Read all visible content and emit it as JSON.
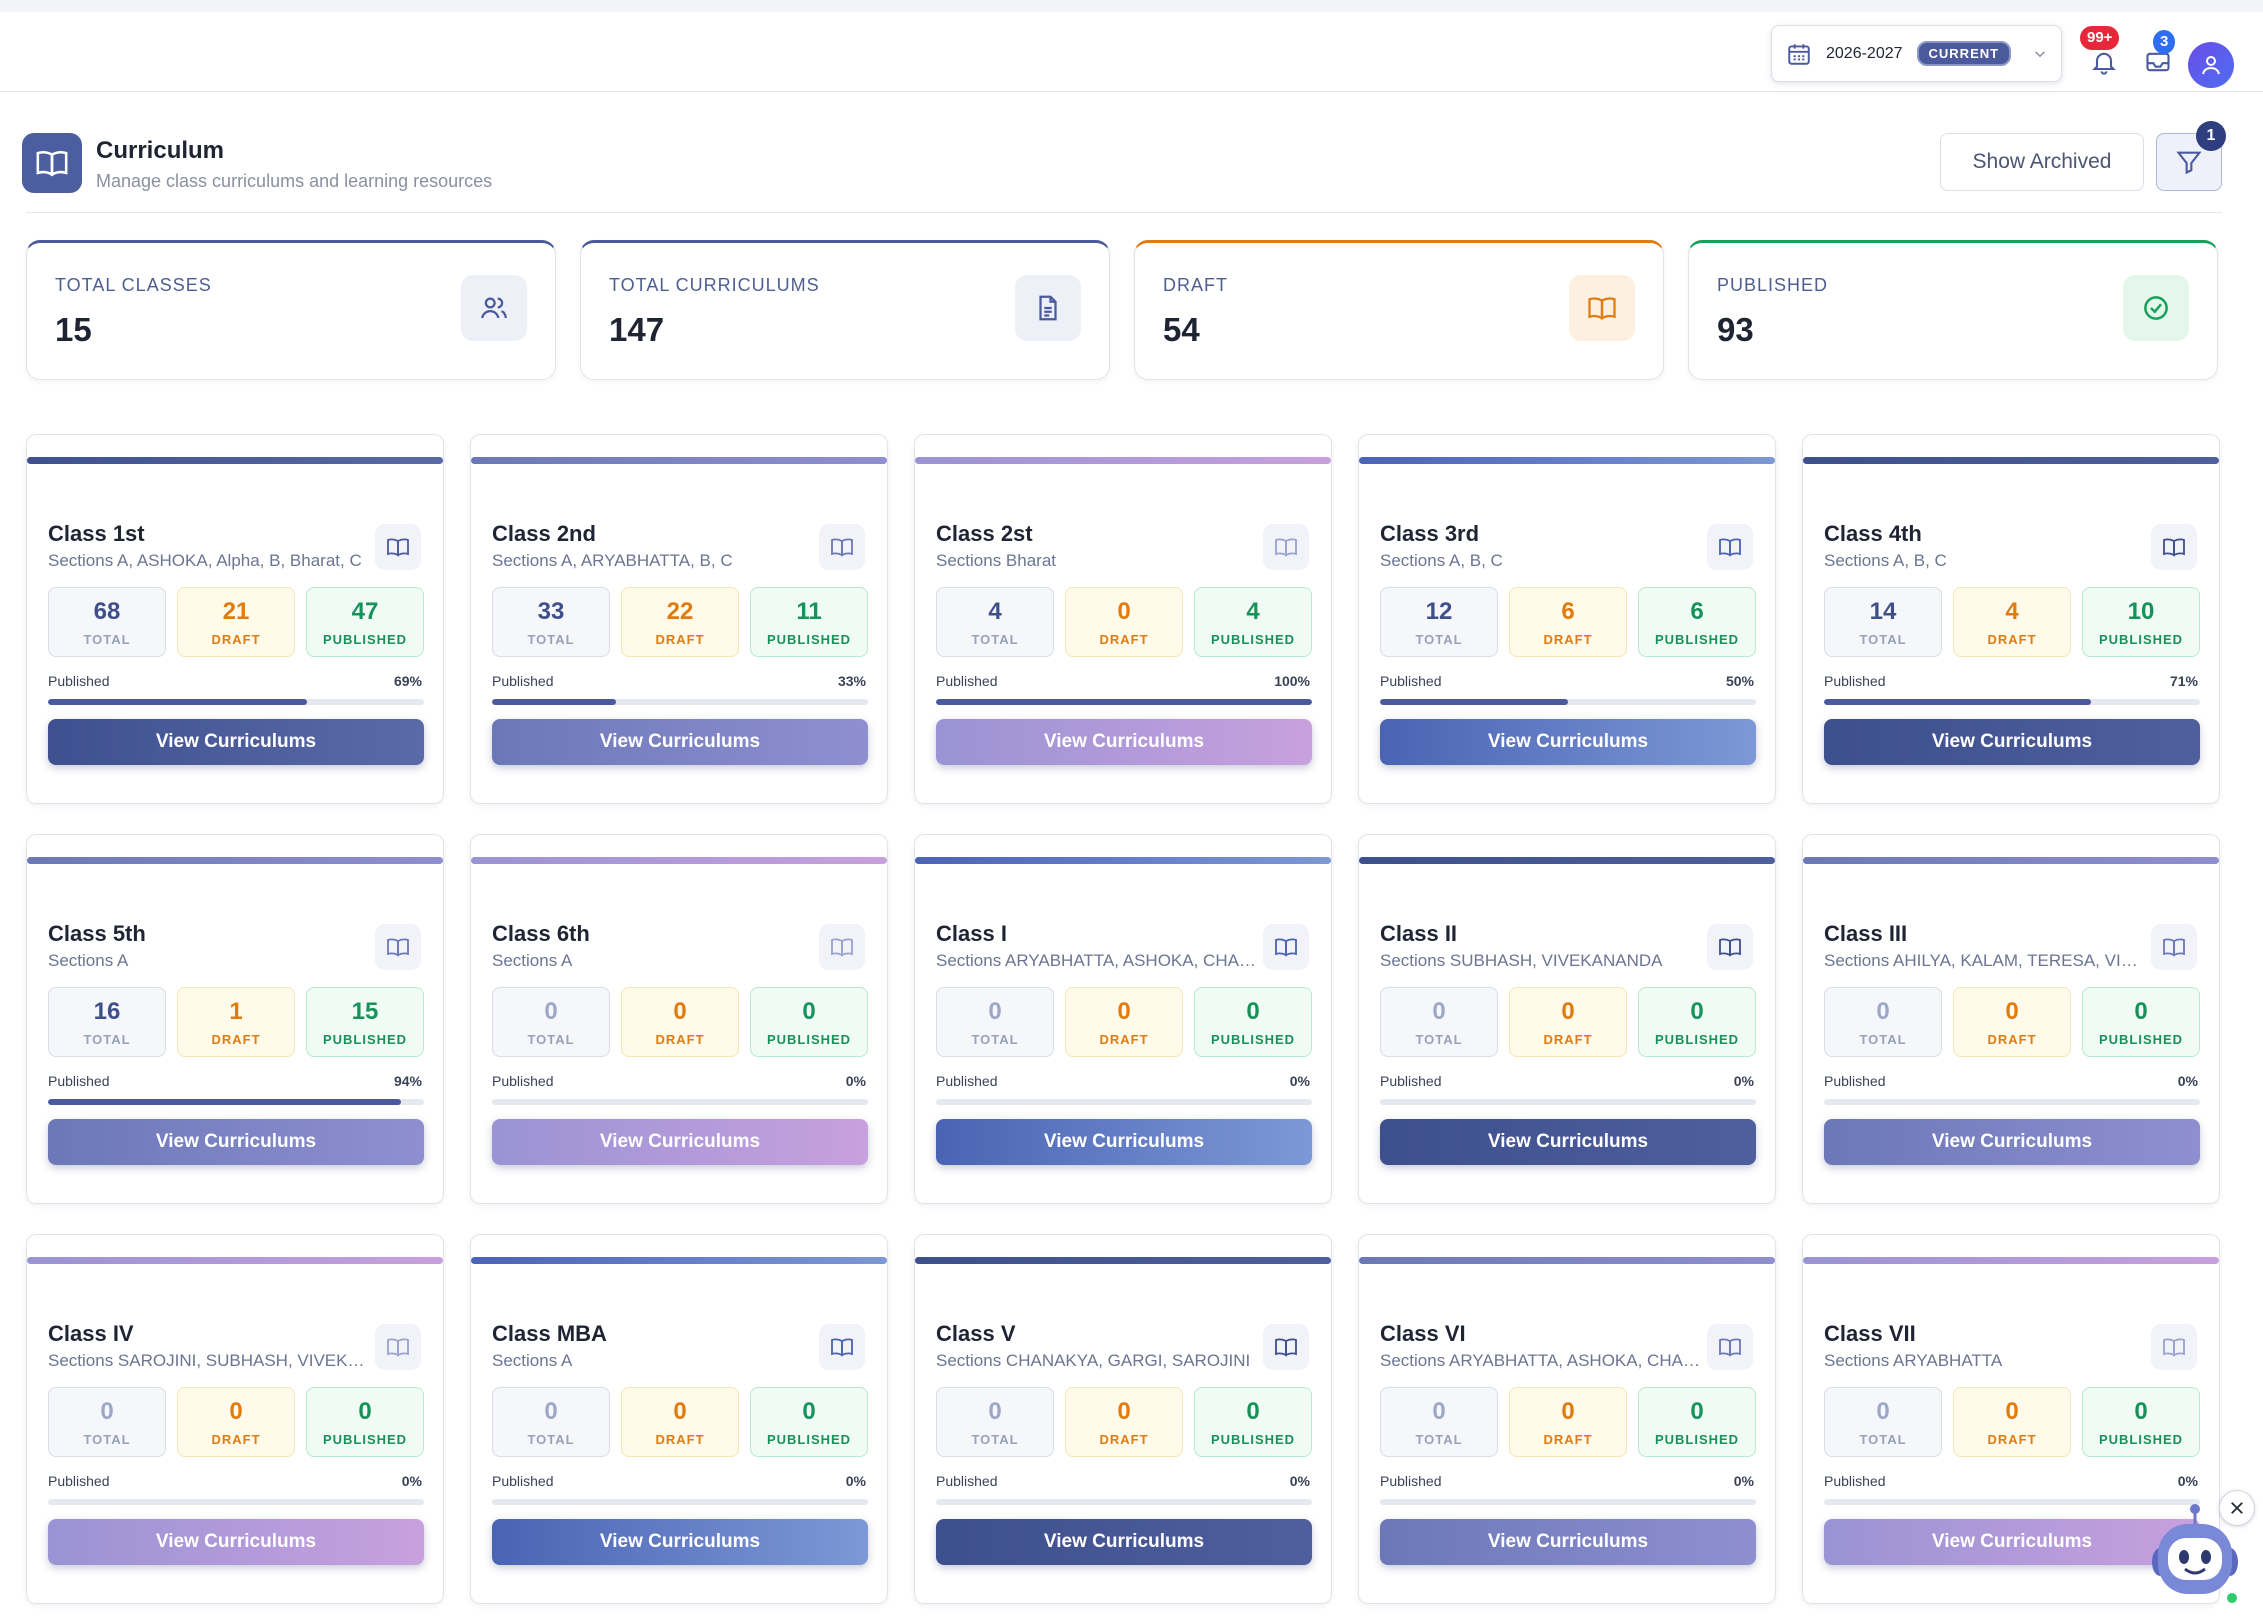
{
  "topbar": {
    "year": "2026-2027",
    "year_badge": "CURRENT",
    "notifications_count": "99+",
    "messages_count": "3"
  },
  "page": {
    "title": "Curriculum",
    "subtitle": "Manage class curriculums and learning resources",
    "show_archived_label": "Show Archived",
    "filter_count": "1"
  },
  "stats": [
    {
      "label": "TOTAL CLASSES",
      "value": "15",
      "icon": "users-icon",
      "accent": "#4a5a9c",
      "icon_bg": "#eef0f7"
    },
    {
      "label": "TOTAL CURRICULUMS",
      "value": "147",
      "icon": "document-icon",
      "accent": "#4a5a9c",
      "icon_bg": "#eef0f7"
    },
    {
      "label": "DRAFT",
      "value": "54",
      "icon": "book-icon",
      "accent": "#e07b10",
      "icon_bg": "#fdf0e0"
    },
    {
      "label": "PUBLISHED",
      "value": "93",
      "icon": "check-circle-icon",
      "accent": "#16a05a",
      "icon_bg": "#e5f7ec"
    }
  ],
  "labels": {
    "total": "TOTAL",
    "draft": "DRAFT",
    "published": "PUBLISHED",
    "progress": "Published",
    "view_button": "View Curriculums"
  },
  "classes": [
    {
      "name": "Class 1st",
      "sections": "Sections A, ASHOKA, Alpha, B, Bharat, C",
      "total": "68",
      "draft": "21",
      "published": "47",
      "percent": "69%",
      "progress": 0.69,
      "theme": "navy"
    },
    {
      "name": "Class 2nd",
      "sections": "Sections A, ARYABHATTA, B, C",
      "total": "33",
      "draft": "22",
      "published": "11",
      "percent": "33%",
      "progress": 0.33,
      "theme": "slate"
    },
    {
      "name": "Class 2st",
      "sections": "Sections Bharat",
      "total": "4",
      "draft": "0",
      "published": "4",
      "percent": "100%",
      "progress": 1.0,
      "theme": "lav"
    },
    {
      "name": "Class 3rd",
      "sections": "Sections A, B, C",
      "total": "12",
      "draft": "6",
      "published": "6",
      "percent": "50%",
      "progress": 0.5,
      "theme": "blue"
    },
    {
      "name": "Class 4th",
      "sections": "Sections A, B, C",
      "total": "14",
      "draft": "4",
      "published": "10",
      "percent": "71%",
      "progress": 0.71,
      "theme": "indigo"
    },
    {
      "name": "Class 5th",
      "sections": "Sections A",
      "total": "16",
      "draft": "1",
      "published": "15",
      "percent": "94%",
      "progress": 0.94,
      "theme": "slate"
    },
    {
      "name": "Class 6th",
      "sections": "Sections A",
      "total": "0",
      "draft": "0",
      "published": "0",
      "percent": "0%",
      "progress": 0,
      "theme": "lav"
    },
    {
      "name": "Class I",
      "sections": "Sections ARYABHATTA, ASHOKA, CHANAKYA",
      "total": "0",
      "draft": "0",
      "published": "0",
      "percent": "0%",
      "progress": 0,
      "theme": "blue"
    },
    {
      "name": "Class II",
      "sections": "Sections SUBHASH, VIVEKANANDA",
      "total": "0",
      "draft": "0",
      "published": "0",
      "percent": "0%",
      "progress": 0,
      "theme": "indigo"
    },
    {
      "name": "Class III",
      "sections": "Sections AHILYA, KALAM, TERESA, VIVEKANANDA",
      "total": "0",
      "draft": "0",
      "published": "0",
      "percent": "0%",
      "progress": 0,
      "theme": "slate"
    },
    {
      "name": "Class IV",
      "sections": "Sections SAROJINI, SUBHASH, VIVEKANANDA",
      "total": "0",
      "draft": "0",
      "published": "0",
      "percent": "0%",
      "progress": 0,
      "theme": "lav"
    },
    {
      "name": "Class MBA",
      "sections": "Sections A",
      "total": "0",
      "draft": "0",
      "published": "0",
      "percent": "0%",
      "progress": 0,
      "theme": "blue"
    },
    {
      "name": "Class V",
      "sections": "Sections CHANAKYA, GARGI, SAROJINI",
      "total": "0",
      "draft": "0",
      "published": "0",
      "percent": "0%",
      "progress": 0,
      "theme": "indigo"
    },
    {
      "name": "Class VI",
      "sections": "Sections ARYABHATTA, ASHOKA, CHANAKYA",
      "total": "0",
      "draft": "0",
      "published": "0",
      "percent": "0%",
      "progress": 0,
      "theme": "slate"
    },
    {
      "name": "Class VII",
      "sections": "Sections ARYABHATTA",
      "total": "0",
      "draft": "0",
      "published": "0",
      "percent": "0%",
      "progress": 0,
      "theme": "lav"
    }
  ]
}
